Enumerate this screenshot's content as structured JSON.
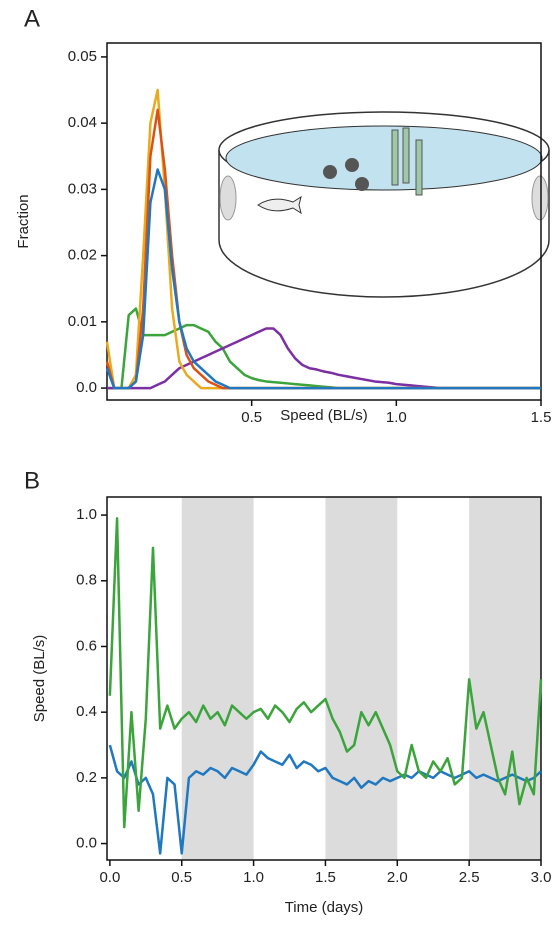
{
  "chart_data": [
    {
      "type": "line",
      "panel_label": "A",
      "x_label": "Speed (BL/s)",
      "y_label": "Fraction",
      "x": [
        0,
        0.025,
        0.05,
        0.075,
        0.1,
        0.125,
        0.15,
        0.175,
        0.2,
        0.225,
        0.25,
        0.275,
        0.3,
        0.325,
        0.35,
        0.375,
        0.4,
        0.425,
        0.45,
        0.475,
        0.5,
        0.525,
        0.55,
        0.575,
        0.6,
        0.625,
        0.65,
        0.675,
        0.7,
        0.725,
        0.75,
        0.775,
        0.8,
        0.825,
        0.85,
        0.875,
        0.9,
        0.925,
        0.95,
        0.975,
        1,
        1.025,
        1.05,
        1.075,
        1.1,
        1.125,
        1.15,
        1.175,
        1.2,
        1.225,
        1.25,
        1.275,
        1.3,
        1.325,
        1.35,
        1.375,
        1.4,
        1.425,
        1.45,
        1.475,
        1.5
      ],
      "series": [
        {
          "color": "#3ba43b",
          "values": [
            0,
            0,
            0,
            0.011,
            0.012,
            0.008,
            0.008,
            0.008,
            0.008,
            0.0085,
            0.009,
            0.0095,
            0.0095,
            0.009,
            0.0085,
            0.007,
            0.006,
            0.004,
            0.003,
            0.002,
            0.0015,
            0.0012,
            0.001,
            0.0009,
            0.0008,
            0.0007,
            0.0006,
            0.0005,
            0.0004,
            0.0003,
            0.0002,
            0.0001,
            0,
            0,
            0,
            0,
            0,
            0,
            0,
            0,
            0,
            0,
            0,
            0,
            0,
            0,
            0,
            0,
            0,
            0,
            0,
            0,
            0,
            0,
            0,
            0,
            0,
            0,
            0,
            0,
            0
          ]
        },
        {
          "color": "#7b2fa3",
          "values": [
            0,
            0,
            0,
            0,
            0,
            0,
            0,
            0.0005,
            0.001,
            0.002,
            0.003,
            0.0035,
            0.004,
            0.0045,
            0.005,
            0.0055,
            0.006,
            0.0065,
            0.007,
            0.0075,
            0.008,
            0.0085,
            0.009,
            0.009,
            0.008,
            0.006,
            0.0045,
            0.0035,
            0.003,
            0.0028,
            0.0025,
            0.0023,
            0.002,
            0.0018,
            0.0016,
            0.0014,
            0.0012,
            0.001,
            0.0009,
            0.0008,
            0.0006,
            0.0005,
            0.0004,
            0.0003,
            0.0002,
            0.0001,
            0,
            0,
            0,
            0,
            0,
            0,
            0,
            0,
            0,
            0,
            0,
            0,
            0,
            0,
            0
          ]
        },
        {
          "color": "#e9aa1d",
          "values": [
            0.007,
            0,
            0,
            0,
            0.002,
            0.02,
            0.04,
            0.045,
            0.03,
            0.012,
            0.004,
            0.002,
            0.001,
            0,
            0,
            0,
            0,
            0,
            0,
            0,
            0,
            0,
            0,
            0,
            0,
            0,
            0,
            0,
            0,
            0,
            0,
            0,
            0,
            0,
            0,
            0,
            0,
            0,
            0,
            0,
            0,
            0,
            0,
            0,
            0,
            0,
            0,
            0,
            0,
            0,
            0,
            0,
            0,
            0,
            0,
            0,
            0,
            0,
            0,
            0,
            0
          ]
        },
        {
          "color": "#d95319",
          "values": [
            0.004,
            0,
            0,
            0,
            0.001,
            0.012,
            0.035,
            0.042,
            0.033,
            0.02,
            0.01,
            0.005,
            0.003,
            0.002,
            0.001,
            0.0005,
            0,
            0,
            0,
            0,
            0,
            0,
            0,
            0,
            0,
            0,
            0,
            0,
            0,
            0,
            0,
            0,
            0,
            0,
            0,
            0,
            0,
            0,
            0,
            0,
            0,
            0,
            0,
            0,
            0,
            0,
            0,
            0,
            0,
            0,
            0,
            0,
            0,
            0,
            0,
            0,
            0,
            0,
            0,
            0,
            0
          ]
        },
        {
          "color": "#1f78c0",
          "values": [
            0.003,
            0,
            0,
            0,
            0.001,
            0.008,
            0.028,
            0.033,
            0.03,
            0.018,
            0.01,
            0.006,
            0.004,
            0.003,
            0.002,
            0.001,
            0.0005,
            0,
            0,
            0,
            0,
            0,
            0,
            0,
            0,
            0,
            0,
            0,
            0,
            0,
            0,
            0,
            0,
            0,
            0,
            0,
            0,
            0,
            0,
            0,
            0,
            0,
            0,
            0,
            0,
            0,
            0,
            0,
            0,
            0,
            0,
            0,
            0,
            0,
            0,
            0,
            0,
            0,
            0,
            0,
            0
          ]
        }
      ],
      "xlim": [
        0,
        1.5
      ],
      "xticks": [
        0.5,
        {
          "value": 1,
          "label": "1.0"
        },
        1.5
      ],
      "ylim": [
        -0.0018,
        0.0521
      ],
      "yticks": [
        {
          "value": 0,
          "label": "0.0"
        },
        0.01,
        0.02,
        0.03,
        0.04,
        0.05
      ]
    },
    {
      "type": "line",
      "panel_label": "B",
      "x_label": "Time (days)",
      "y_label": "Speed (BL/s)",
      "shaded_intervals": [
        [
          0.5,
          1
        ],
        [
          1.5,
          2
        ],
        [
          2.5,
          3
        ]
      ],
      "shade_color": "#dcdcdc",
      "x": [
        0,
        0.05,
        0.1,
        0.15,
        0.2,
        0.25,
        0.3,
        0.35,
        0.4,
        0.45,
        0.5,
        0.55,
        0.6,
        0.65,
        0.7,
        0.75,
        0.8,
        0.85,
        0.9,
        0.95,
        1,
        1.05,
        1.1,
        1.15,
        1.2,
        1.25,
        1.3,
        1.35,
        1.4,
        1.45,
        1.5,
        1.55,
        1.6,
        1.65,
        1.7,
        1.75,
        1.8,
        1.85,
        1.9,
        1.95,
        2,
        2.05,
        2.1,
        2.15,
        2.2,
        2.25,
        2.3,
        2.35,
        2.4,
        2.45,
        2.5,
        2.55,
        2.6,
        2.65,
        2.7,
        2.75,
        2.8,
        2.85,
        2.9,
        2.95,
        3
      ],
      "series": [
        {
          "color": "#1f78c0",
          "values": [
            0.3,
            0.22,
            0.2,
            0.25,
            0.18,
            0.2,
            0.15,
            -0.03,
            0.2,
            0.18,
            -0.03,
            0.2,
            0.22,
            0.21,
            0.23,
            0.22,
            0.2,
            0.23,
            0.22,
            0.21,
            0.24,
            0.28,
            0.26,
            0.25,
            0.24,
            0.27,
            0.23,
            0.25,
            0.24,
            0.22,
            0.23,
            0.2,
            0.19,
            0.18,
            0.2,
            0.17,
            0.19,
            0.18,
            0.2,
            0.19,
            0.2,
            0.21,
            0.2,
            0.22,
            0.21,
            0.2,
            0.22,
            0.21,
            0.2,
            0.21,
            0.22,
            0.2,
            0.21,
            0.2,
            0.19,
            0.2,
            0.21,
            0.2,
            0.19,
            0.2,
            0.22
          ]
        },
        {
          "color": "#3ba43b",
          "values": [
            0.45,
            0.99,
            0.05,
            0.4,
            0.1,
            0.38,
            0.9,
            0.35,
            0.42,
            0.35,
            0.38,
            0.4,
            0.37,
            0.42,
            0.38,
            0.4,
            0.36,
            0.42,
            0.4,
            0.38,
            0.4,
            0.41,
            0.38,
            0.42,
            0.4,
            0.37,
            0.41,
            0.43,
            0.4,
            0.42,
            0.44,
            0.38,
            0.34,
            0.28,
            0.3,
            0.4,
            0.36,
            0.4,
            0.35,
            0.3,
            0.22,
            0.2,
            0.3,
            0.22,
            0.2,
            0.25,
            0.22,
            0.26,
            0.18,
            0.2,
            0.5,
            0.35,
            0.4,
            0.3,
            0.2,
            0.15,
            0.28,
            0.12,
            0.2,
            0.15,
            0.5
          ]
        }
      ],
      "xlim": [
        -0.02,
        3
      ],
      "xticks": [
        {
          "value": 0,
          "label": "0.0"
        },
        0.5,
        {
          "value": 1,
          "label": "1.0"
        },
        1.5,
        {
          "value": 2,
          "label": "2.0"
        },
        2.5,
        {
          "value": 3,
          "label": "3.0"
        }
      ],
      "ylim": [
        -0.05,
        1.055
      ],
      "yticks": [
        {
          "value": 0,
          "label": "0.0"
        },
        0.2,
        0.4,
        0.6,
        0.8,
        {
          "value": 1,
          "label": "1.0"
        }
      ]
    }
  ]
}
